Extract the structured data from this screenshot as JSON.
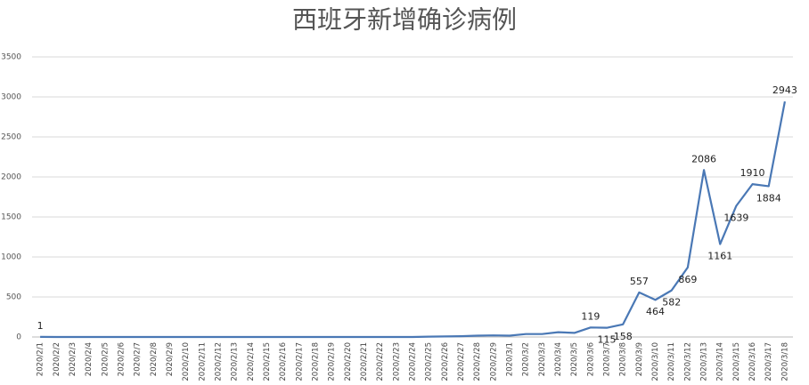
{
  "chart_data": {
    "type": "line",
    "title": "西班牙新增确诊病例",
    "categories": [
      "2020/2/1",
      "2020/2/2",
      "2020/2/3",
      "2020/2/4",
      "2020/2/5",
      "2020/2/6",
      "2020/2/7",
      "2020/2/8",
      "2020/2/9",
      "2020/2/10",
      "2020/2/11",
      "2020/2/12",
      "2020/2/13",
      "2020/2/14",
      "2020/2/15",
      "2020/2/16",
      "2020/2/17",
      "2020/2/18",
      "2020/2/19",
      "2020/2/20",
      "2020/2/21",
      "2020/2/22",
      "2020/2/23",
      "2020/2/24",
      "2020/2/25",
      "2020/2/26",
      "2020/2/27",
      "2020/2/28",
      "2020/2/29",
      "2020/3/1",
      "2020/3/2",
      "2020/3/3",
      "2020/3/4",
      "2020/3/5",
      "2020/3/6",
      "2020/3/7",
      "2020/3/8",
      "2020/3/9",
      "2020/3/10",
      "2020/3/11",
      "2020/3/12",
      "2020/3/13",
      "2020/3/14",
      "2020/3/15",
      "2020/3/16",
      "2020/3/17",
      "2020/3/18"
    ],
    "series": [
      {
        "name": "新增确诊",
        "color": "#4a78b5",
        "values": [
          1,
          0,
          0,
          0,
          0,
          0,
          0,
          0,
          0,
          0,
          0,
          0,
          0,
          0,
          0,
          0,
          0,
          0,
          0,
          0,
          0,
          0,
          0,
          0,
          4,
          7,
          10,
          17,
          20,
          17,
          37,
          37,
          60,
          51,
          119,
          115,
          158,
          557,
          464,
          582,
          869,
          2086,
          1161,
          1639,
          1910,
          1884,
          2943
        ],
        "value_labels": [
          "1",
          null,
          null,
          null,
          null,
          null,
          null,
          null,
          null,
          null,
          null,
          null,
          null,
          null,
          null,
          null,
          null,
          null,
          null,
          null,
          null,
          null,
          null,
          null,
          null,
          null,
          null,
          null,
          null,
          null,
          null,
          null,
          null,
          null,
          "119",
          "115",
          "158",
          "557",
          "464",
          "582",
          "869",
          "2086",
          "1161",
          "1639",
          "1910",
          "1884",
          "2943"
        ]
      }
    ],
    "ylim": [
      0,
      3500
    ],
    "yticks": [
      0,
      500,
      1000,
      1500,
      2000,
      2500,
      3000,
      3500
    ],
    "grid": true
  }
}
